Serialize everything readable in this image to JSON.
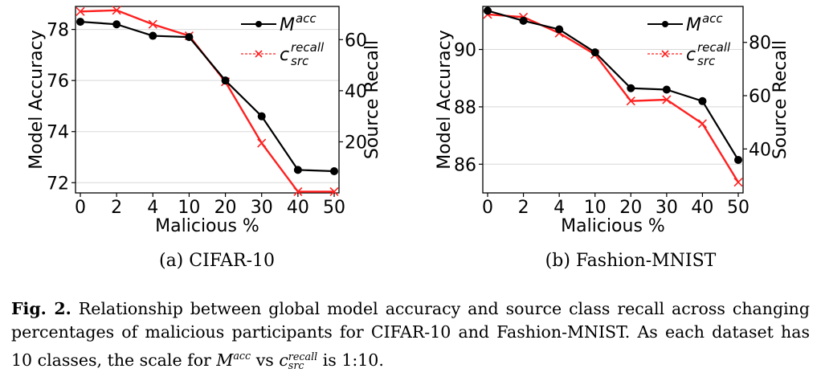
{
  "chart_data": [
    {
      "type": "line",
      "panel": "a",
      "caption": "(a) CIFAR-10",
      "xlabel": "Malicious %",
      "ylabel": "Model Accuracy",
      "y2label": "Source Recall",
      "categories": [
        "0",
        "2",
        "4",
        "10",
        "20",
        "30",
        "40",
        "50"
      ],
      "ylim": [
        71.6,
        78.9
      ],
      "y2lim": [
        0,
        73
      ],
      "yticks": [
        72,
        74,
        76,
        78
      ],
      "y2ticks": [
        20,
        40,
        60
      ],
      "grid": true,
      "legend_position": "top-right",
      "series": [
        {
          "name": "M^acc",
          "axis": "left",
          "color": "#000000",
          "marker": "circle",
          "values": [
            78.3,
            78.2,
            77.75,
            77.7,
            76.0,
            74.6,
            72.5,
            72.45
          ]
        },
        {
          "name": "c_src^recall",
          "axis": "right",
          "color": "#ff2020",
          "marker": "x",
          "values": [
            71,
            71.5,
            66,
            61.5,
            43.5,
            19.5,
            0.5,
            0.5
          ]
        }
      ]
    },
    {
      "type": "line",
      "panel": "b",
      "caption": "(b) Fashion-MNIST",
      "xlabel": "Malicious %",
      "ylabel": "Model Accuracy",
      "y2label": "Source Recall",
      "categories": [
        "0",
        "2",
        "4",
        "10",
        "20",
        "30",
        "40",
        "50"
      ],
      "ylim": [
        85.0,
        91.5
      ],
      "y2lim": [
        23.5,
        93.5
      ],
      "yticks": [
        86,
        88,
        90
      ],
      "y2ticks": [
        40,
        60,
        80
      ],
      "grid": true,
      "legend_position": "top-right",
      "series": [
        {
          "name": "M^acc",
          "axis": "left",
          "color": "#000000",
          "marker": "circle",
          "values": [
            91.35,
            91.0,
            90.7,
            89.9,
            88.65,
            88.6,
            88.2,
            86.15
          ]
        },
        {
          "name": "c_src^recall",
          "axis": "right",
          "color": "#ff2020",
          "marker": "x",
          "values": [
            90.5,
            89.5,
            83.5,
            75.5,
            58.0,
            58.5,
            49.5,
            27.5
          ]
        }
      ]
    }
  ],
  "legend": {
    "acc_base": "M",
    "acc_sup": "acc",
    "recall_base": "c",
    "recall_sup": "recall",
    "recall_sub": "src"
  },
  "caption": {
    "label": "Fig. 2.",
    "text1": " Relationship between global model accuracy and source class recall across changing percentages of malicious participants for CIFAR-10 and Fashion-MNIST. As each dataset has 10 classes, the scale for ",
    "m_base": "M",
    "m_sup": "acc",
    "vs": " vs ",
    "c_base": "c",
    "c_sup": "recall",
    "c_sub": "src",
    "text2": " is 1:10."
  }
}
